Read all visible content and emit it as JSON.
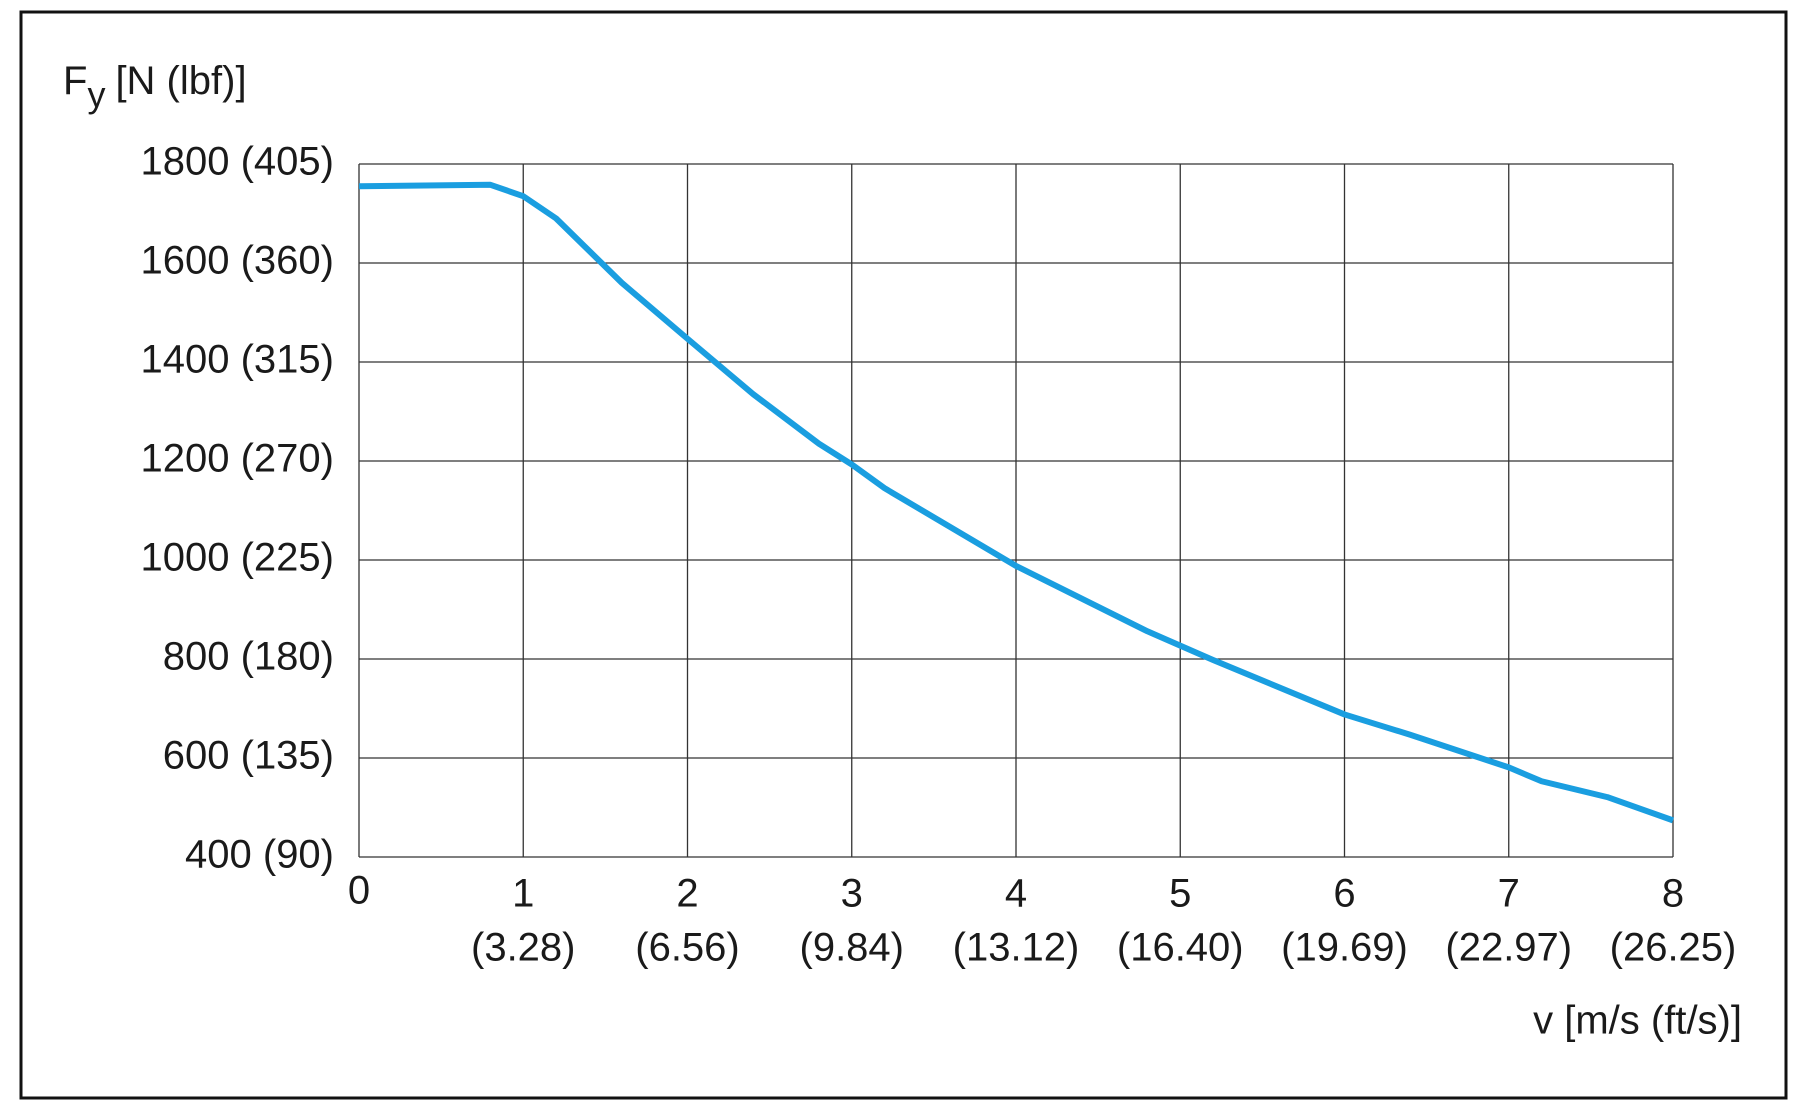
{
  "chart_data": {
    "type": "line",
    "ylabel": {
      "symbol": "F",
      "subscript": "y",
      "unit": "[N (lbf)]"
    },
    "xlabel": "v [m/s (ft/s)]",
    "x": [
      0,
      0.8,
      1,
      1.2,
      1.6,
      2,
      2.4,
      2.8,
      3,
      3.2,
      4,
      4.8,
      5.2,
      6,
      6.4,
      7,
      7.2,
      7.6,
      8
    ],
    "series": [
      {
        "color": "#1a9ee0",
        "values": [
          1755,
          1758,
          1735,
          1690,
          1560,
          1447,
          1335,
          1235,
          1193,
          1145,
          988,
          856,
          798,
          688,
          647,
          581,
          553,
          521,
          474
        ]
      }
    ],
    "xlim": [
      0,
      8
    ],
    "ylim": [
      400,
      1800
    ],
    "xticks": [
      0,
      {
        "value": 1,
        "label": [
          "1",
          "(3.28)"
        ]
      },
      {
        "value": 2,
        "label": [
          "2",
          "(6.56)"
        ]
      },
      {
        "value": 3,
        "label": [
          "3",
          "(9.84)"
        ]
      },
      {
        "value": 4,
        "label": [
          "4",
          "(13.12)"
        ]
      },
      {
        "value": 5,
        "label": [
          "5",
          "(16.40)"
        ]
      },
      {
        "value": 6,
        "label": [
          "6",
          "(19.69)"
        ]
      },
      {
        "value": 7,
        "label": [
          "7",
          "(22.97)"
        ]
      },
      {
        "value": 8,
        "label": [
          "8",
          "(26.25)"
        ]
      }
    ],
    "yticks": [
      {
        "value": 400,
        "label": "400 (90)"
      },
      {
        "value": 600,
        "label": "600 (135)"
      },
      {
        "value": 800,
        "label": "800 (180)"
      },
      {
        "value": 1000,
        "label": "1000 (225)"
      },
      {
        "value": 1200,
        "label": "1200 (270)"
      },
      {
        "value": 1400,
        "label": "1400 (315)"
      },
      {
        "value": 1600,
        "label": "1600 (360)"
      },
      {
        "value": 1800,
        "label": "1800 (405)"
      }
    ],
    "grid": true
  }
}
